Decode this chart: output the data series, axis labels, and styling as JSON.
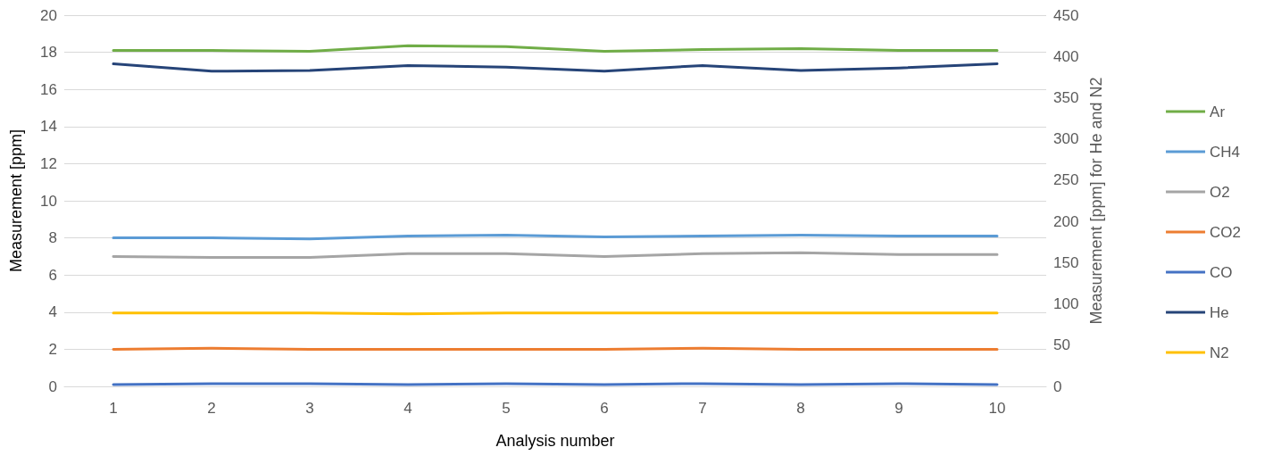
{
  "chart_data": {
    "type": "line",
    "xlabel": "Analysis number",
    "ylabel": "Measurement [ppm]",
    "y2label": "Measurement [ppm] for He and N2",
    "categories": [
      "1",
      "2",
      "3",
      "4",
      "5",
      "6",
      "7",
      "8",
      "9",
      "10"
    ],
    "series": [
      {
        "name": "Ar",
        "color": "#70ad47",
        "values": [
          18.1,
          18.1,
          18.05,
          18.35,
          18.3,
          18.05,
          18.15,
          18.2,
          18.1,
          18.1
        ]
      },
      {
        "name": "CH4",
        "color": "#5b9bd5",
        "values": [
          8.0,
          8.0,
          7.95,
          8.1,
          8.15,
          8.05,
          8.1,
          8.15,
          8.1,
          8.1
        ]
      },
      {
        "name": "O2",
        "color": "#a5a5a5",
        "values": [
          7.0,
          6.95,
          6.95,
          7.15,
          7.15,
          7.0,
          7.15,
          7.2,
          7.1,
          7.1
        ]
      },
      {
        "name": "CO2",
        "color": "#ed7d31",
        "values": [
          2.0,
          2.05,
          2.0,
          2.0,
          2.0,
          2.0,
          2.05,
          2.0,
          2.0,
          2.0
        ]
      },
      {
        "name": "CO",
        "color": "#4472c4",
        "values": [
          0.1,
          0.15,
          0.15,
          0.1,
          0.15,
          0.1,
          0.15,
          0.1,
          0.15,
          0.1
        ]
      },
      {
        "name": "He",
        "color": "#264478",
        "axis": "y2",
        "values": [
          391,
          382,
          383,
          389,
          387,
          382,
          389,
          383,
          386,
          391
        ]
      },
      {
        "name": "N2",
        "color": "#ffc000",
        "axis": "y2",
        "values": [
          89,
          89,
          89,
          88,
          89,
          89,
          89,
          89,
          89,
          89
        ]
      }
    ],
    "ylim": [
      0,
      20
    ],
    "yticks": [
      0,
      2,
      4,
      6,
      8,
      10,
      12,
      14,
      16,
      18,
      20
    ],
    "y2lim": [
      0,
      450
    ],
    "y2ticks": [
      0,
      50,
      100,
      150,
      200,
      250,
      300,
      350,
      400,
      450
    ],
    "grid": "y",
    "legend": "right",
    "marker": "none",
    "line_style": "solid"
  }
}
